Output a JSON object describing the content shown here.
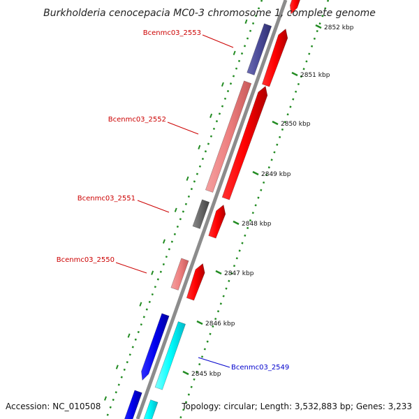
{
  "title": "Burkholderia cenocepacia MC0-3 chromosome 1, complete genome",
  "footer": {
    "accession": "Accession: NC_010508",
    "info": "Topology: circular; Length: 3,532,883 bp; Genes: 3,233"
  },
  "colors": {
    "backbone": "#8c8c8c",
    "tick": "#228b22",
    "label_red": "#cc0000",
    "label_blue": "#0000cc"
  },
  "ticks": [
    {
      "kbp": 2852,
      "label": "2852 kbp"
    },
    {
      "kbp": 2851,
      "label": "2851 kbp"
    },
    {
      "kbp": 2850,
      "label": "2850 kbp"
    },
    {
      "kbp": 2849,
      "label": "2849 kbp"
    },
    {
      "kbp": 2848,
      "label": "2848 kbp"
    },
    {
      "kbp": 2847,
      "label": "2847 kbp"
    },
    {
      "kbp": 2846,
      "label": "2846 kbp"
    },
    {
      "kbp": 2845,
      "label": "2845 kbp"
    }
  ],
  "genes": [
    {
      "name": "Bcenmc03_2553",
      "label_color": "#cc0000",
      "label_side": "left"
    },
    {
      "name": "Bcenmc03_2552",
      "label_color": "#cc0000",
      "label_side": "left"
    },
    {
      "name": "Bcenmc03_2551",
      "label_color": "#cc0000",
      "label_side": "left"
    },
    {
      "name": "Bcenmc03_2550",
      "label_color": "#cc0000",
      "label_side": "left"
    },
    {
      "name": "Bcenmc03_2549",
      "label_color": "#0000cc",
      "label_side": "right"
    }
  ]
}
